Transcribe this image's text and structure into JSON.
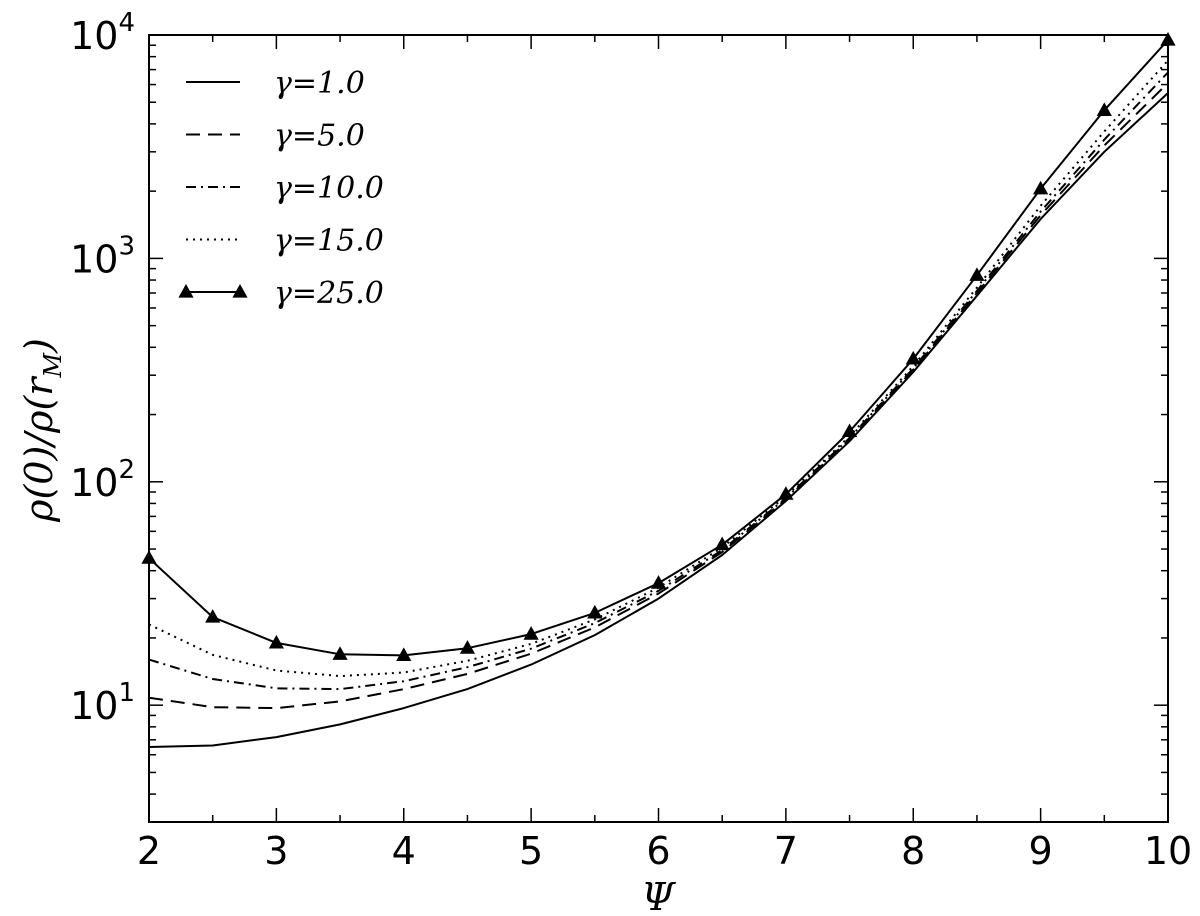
{
  "chart_data": {
    "type": "line",
    "xlabel": "Ψ",
    "ylabel": "ρ(0)/ρ(r_M)",
    "xlim": [
      2,
      10
    ],
    "ylim": [
      3.0,
      10000
    ],
    "yscale": "log",
    "grid": false,
    "legend_position": "top-left",
    "x_ticks": [
      "2",
      "3",
      "4",
      "5",
      "6",
      "7",
      "8",
      "9",
      "10"
    ],
    "y_ticks": [
      {
        "base": "10",
        "exp": "1",
        "value": 10
      },
      {
        "base": "10",
        "exp": "2",
        "value": 100
      },
      {
        "base": "10",
        "exp": "3",
        "value": 1000
      },
      {
        "base": "10",
        "exp": "4",
        "value": 10000
      }
    ],
    "x": [
      2.0,
      2.5,
      3.0,
      3.5,
      4.0,
      4.5,
      5.0,
      5.5,
      6.0,
      6.5,
      7.0,
      7.5,
      8.0,
      8.5,
      9.0,
      9.5,
      10.0
    ],
    "series": [
      {
        "name": "γ=1.0",
        "style": "solid",
        "marker": "none",
        "values": [
          6.5,
          6.6,
          7.2,
          8.2,
          9.7,
          11.8,
          15.2,
          20.6,
          30.0,
          47.0,
          82.0,
          152.0,
          310.0,
          680.0,
          1500.0,
          3000.0,
          5500.0
        ]
      },
      {
        "name": "γ=5.0",
        "style": "dashed",
        "marker": "none",
        "values": [
          10.8,
          9.8,
          9.7,
          10.4,
          11.8,
          13.8,
          17.0,
          22.3,
          31.6,
          48.5,
          83.5,
          155.0,
          318.0,
          700.0,
          1560.0,
          3200.0,
          6100.0
        ]
      },
      {
        "name": "γ=10.0",
        "style": "dashdot",
        "marker": "none",
        "values": [
          16.0,
          13.1,
          11.9,
          11.8,
          12.8,
          14.8,
          17.9,
          23.3,
          32.5,
          49.5,
          84.5,
          157.0,
          322.0,
          715.0,
          1620.0,
          3400.0,
          6800.0
        ]
      },
      {
        "name": "γ=15.0",
        "style": "dotted",
        "marker": "none",
        "values": [
          23.0,
          16.8,
          14.3,
          13.5,
          14.0,
          15.8,
          18.8,
          24.2,
          33.6,
          50.8,
          86.0,
          160.0,
          330.0,
          740.0,
          1720.0,
          3700.0,
          7700.0
        ]
      },
      {
        "name": "γ=25.0",
        "style": "solid",
        "marker": "triangle",
        "values": [
          45.5,
          24.8,
          19.0,
          16.9,
          16.7,
          18.0,
          20.8,
          25.9,
          35.2,
          52.3,
          88.0,
          168.0,
          355.0,
          840.0,
          2050.0,
          4600.0,
          9500.0
        ]
      }
    ]
  }
}
